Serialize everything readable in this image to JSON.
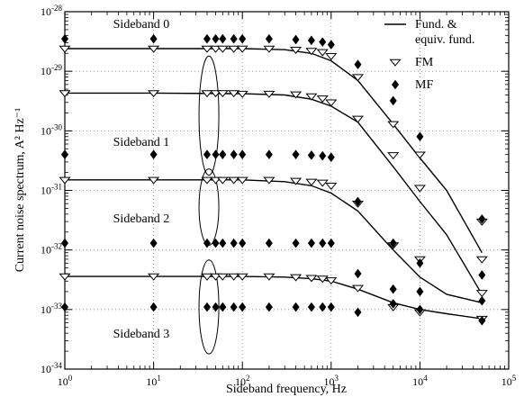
{
  "chart_data": {
    "type": "scatter",
    "xlabel": "Sideband frequency, Hz",
    "ylabel": "Current noise spectrum, A² Hz⁻¹",
    "x_scale": "log",
    "y_scale": "log",
    "xlim": [
      1,
      100000
    ],
    "ylim": [
      1e-34,
      1e-28
    ],
    "x_ticks": [
      {
        "value": 1,
        "base": "10",
        "exp": "0"
      },
      {
        "value": 10,
        "base": "10",
        "exp": "1"
      },
      {
        "value": 100,
        "base": "10",
        "exp": "2"
      },
      {
        "value": 1000,
        "base": "10",
        "exp": "3"
      },
      {
        "value": 10000,
        "base": "10",
        "exp": "4"
      },
      {
        "value": 100000,
        "base": "10",
        "exp": "5"
      }
    ],
    "y_ticks": [
      {
        "value": 1e-28,
        "base": "10",
        "exp": "-28"
      },
      {
        "value": 1e-29,
        "base": "10",
        "exp": "-29"
      },
      {
        "value": 1e-30,
        "base": "10",
        "exp": "-30"
      },
      {
        "value": 1e-31,
        "base": "10",
        "exp": "-31"
      },
      {
        "value": 1e-32,
        "base": "10",
        "exp": "-32"
      },
      {
        "value": 1e-33,
        "base": "10",
        "exp": "-33"
      },
      {
        "value": 1e-34,
        "base": "10",
        "exp": "-34"
      }
    ],
    "legend": {
      "placement": "top-right",
      "entries": [
        {
          "marker": "line",
          "label_lines": [
            "Fund. &",
            "equiv. fund."
          ]
        },
        {
          "marker": "triangle-down",
          "label_lines": [
            "FM"
          ]
        },
        {
          "marker": "diamond",
          "label_lines": [
            "MF"
          ]
        }
      ]
    },
    "annotations": [
      {
        "text": "Sideband 0",
        "x": 3.5,
        "y": 5.3e-29
      },
      {
        "text": "Sideband 1",
        "x": 3.5,
        "y": 5.6e-31
      },
      {
        "text": "Sideband 2",
        "x": 3.5,
        "y": 2.9e-32
      },
      {
        "text": "Sideband 3",
        "x": 3.5,
        "y": 3.4e-34
      }
    ],
    "ellipses": [
      {
        "x": 42,
        "y_top": 1.8e-29,
        "y_bottom": 1.8e-31
      },
      {
        "x": 42,
        "y_top": 2.3e-31,
        "y_bottom": 1.2e-32
      },
      {
        "x": 42,
        "y_top": 6.8e-33,
        "y_bottom": 1.8e-34
      }
    ],
    "series": [
      {
        "marker": "line",
        "curves": [
          {
            "x": [
              1,
              10,
              100,
              300,
              600,
              1000,
              2000,
              5000,
              10000,
              20000,
              50000
            ],
            "y": [
              2.4e-29,
              2.4e-29,
              2.4e-29,
              2.3e-29,
              2e-29,
              1.5e-29,
              7e-30,
              1.3e-30,
              3.5e-31,
              1e-31,
              9e-33
            ]
          },
          {
            "x": [
              1,
              10,
              100,
              300,
              600,
              1000,
              2000,
              5000,
              10000,
              20000,
              50000
            ],
            "y": [
              4.3e-30,
              4.3e-30,
              4.2e-30,
              4e-30,
              3.4e-30,
              2.6e-30,
              1.4e-30,
              2.5e-31,
              6.5e-32,
              1.8e-32,
              1.8e-33
            ]
          },
          {
            "x": [
              1,
              10,
              100,
              300,
              600,
              1000,
              2000,
              5000,
              10000,
              20000,
              50000
            ],
            "y": [
              1.5e-31,
              1.5e-31,
              1.5e-31,
              1.4e-31,
              1.2e-31,
              9e-32,
              4.5e-32,
              1e-32,
              3.5e-33,
              1.8e-33,
              1.3e-33
            ]
          },
          {
            "x": [
              1,
              10,
              100,
              300,
              600,
              1000,
              2000,
              5000,
              10000,
              20000,
              50000
            ],
            "y": [
              3.6e-33,
              3.6e-33,
              3.6e-33,
              3.5e-33,
              3.3e-33,
              3e-33,
              2.2e-33,
              1.3e-33,
              1e-33,
              8.5e-34,
              7e-34
            ]
          }
        ]
      },
      {
        "marker": "triangle-down",
        "points": [
          {
            "x": 1,
            "y": 2.4e-29
          },
          {
            "x": 10,
            "y": 2.4e-29
          },
          {
            "x": 40,
            "y": 2.4e-29
          },
          {
            "x": 50,
            "y": 2.4e-29
          },
          {
            "x": 60,
            "y": 2.4e-29
          },
          {
            "x": 80,
            "y": 2.4e-29
          },
          {
            "x": 100,
            "y": 2.4e-29
          },
          {
            "x": 200,
            "y": 2.4e-29
          },
          {
            "x": 400,
            "y": 2.3e-29
          },
          {
            "x": 600,
            "y": 2.2e-29
          },
          {
            "x": 800,
            "y": 2.1e-29
          },
          {
            "x": 1000,
            "y": 1.8e-29
          },
          {
            "x": 2000,
            "y": 8e-30
          },
          {
            "x": 5000,
            "y": 1.3e-30
          },
          {
            "x": 10000,
            "y": 4e-31
          },
          {
            "x": 50000,
            "y": 3e-32
          },
          {
            "x": 1,
            "y": 4.3e-30
          },
          {
            "x": 10,
            "y": 4.3e-30
          },
          {
            "x": 40,
            "y": 4.3e-30
          },
          {
            "x": 50,
            "y": 4.3e-30
          },
          {
            "x": 60,
            "y": 4.3e-30
          },
          {
            "x": 80,
            "y": 4.3e-30
          },
          {
            "x": 100,
            "y": 4.2e-30
          },
          {
            "x": 200,
            "y": 4.2e-30
          },
          {
            "x": 400,
            "y": 4.1e-30
          },
          {
            "x": 600,
            "y": 3.8e-30
          },
          {
            "x": 800,
            "y": 3.5e-30
          },
          {
            "x": 1000,
            "y": 3e-30
          },
          {
            "x": 2000,
            "y": 1.6e-30
          },
          {
            "x": 5000,
            "y": 3.9e-31
          },
          {
            "x": 10000,
            "y": 1.1e-31
          },
          {
            "x": 50000,
            "y": 7e-33
          },
          {
            "x": 1,
            "y": 1.5e-31
          },
          {
            "x": 10,
            "y": 1.5e-31
          },
          {
            "x": 40,
            "y": 1.5e-31
          },
          {
            "x": 50,
            "y": 1.5e-31
          },
          {
            "x": 60,
            "y": 1.5e-31
          },
          {
            "x": 80,
            "y": 1.5e-31
          },
          {
            "x": 100,
            "y": 1.5e-31
          },
          {
            "x": 200,
            "y": 1.5e-31
          },
          {
            "x": 400,
            "y": 1.45e-31
          },
          {
            "x": 600,
            "y": 1.4e-31
          },
          {
            "x": 800,
            "y": 1.35e-31
          },
          {
            "x": 1000,
            "y": 1.2e-31
          },
          {
            "x": 2000,
            "y": 6e-32
          },
          {
            "x": 5000,
            "y": 1.2e-32
          },
          {
            "x": 10000,
            "y": 7e-33
          },
          {
            "x": 50000,
            "y": 1.9e-33
          },
          {
            "x": 1,
            "y": 3.6e-33
          },
          {
            "x": 10,
            "y": 3.6e-33
          },
          {
            "x": 40,
            "y": 3.6e-33
          },
          {
            "x": 50,
            "y": 3.6e-33
          },
          {
            "x": 60,
            "y": 3.6e-33
          },
          {
            "x": 80,
            "y": 3.6e-33
          },
          {
            "x": 100,
            "y": 3.6e-33
          },
          {
            "x": 200,
            "y": 3.6e-33
          },
          {
            "x": 400,
            "y": 3.5e-33
          },
          {
            "x": 600,
            "y": 3.4e-33
          },
          {
            "x": 800,
            "y": 3.3e-33
          },
          {
            "x": 1000,
            "y": 3.1e-33
          },
          {
            "x": 2000,
            "y": 2.3e-33
          },
          {
            "x": 5000,
            "y": 1.1e-33
          },
          {
            "x": 10000,
            "y": 9e-34
          },
          {
            "x": 50000,
            "y": 7e-34
          }
        ]
      },
      {
        "marker": "diamond",
        "points": [
          {
            "x": 1,
            "y": 3.5e-29
          },
          {
            "x": 10,
            "y": 3.5e-29
          },
          {
            "x": 40,
            "y": 3.5e-29
          },
          {
            "x": 50,
            "y": 3.5e-29
          },
          {
            "x": 60,
            "y": 3.5e-29
          },
          {
            "x": 80,
            "y": 3.5e-29
          },
          {
            "x": 100,
            "y": 3.5e-29
          },
          {
            "x": 200,
            "y": 3.5e-29
          },
          {
            "x": 400,
            "y": 3.4e-29
          },
          {
            "x": 600,
            "y": 3.3e-29
          },
          {
            "x": 800,
            "y": 3.1e-29
          },
          {
            "x": 1000,
            "y": 2.8e-29
          },
          {
            "x": 2000,
            "y": 1.3e-29
          },
          {
            "x": 5000,
            "y": 3.2e-30
          },
          {
            "x": 10000,
            "y": 8e-31
          },
          {
            "x": 50000,
            "y": 3.3e-32
          },
          {
            "x": 1,
            "y": 4e-31
          },
          {
            "x": 10,
            "y": 4e-31
          },
          {
            "x": 40,
            "y": 4e-31
          },
          {
            "x": 50,
            "y": 4e-31
          },
          {
            "x": 60,
            "y": 4e-31
          },
          {
            "x": 80,
            "y": 4e-31
          },
          {
            "x": 100,
            "y": 4e-31
          },
          {
            "x": 200,
            "y": 4e-31
          },
          {
            "x": 400,
            "y": 4e-31
          },
          {
            "x": 600,
            "y": 3.9e-31
          },
          {
            "x": 800,
            "y": 3.8e-31
          },
          {
            "x": 1000,
            "y": 3.6e-31
          },
          {
            "x": 2000,
            "y": 6.5e-32
          },
          {
            "x": 5000,
            "y": 1.3e-32
          },
          {
            "x": 10000,
            "y": 6e-33
          },
          {
            "x": 50000,
            "y": 3.8e-33
          },
          {
            "x": 1,
            "y": 1.3e-32
          },
          {
            "x": 10,
            "y": 1.3e-32
          },
          {
            "x": 40,
            "y": 1.3e-32
          },
          {
            "x": 50,
            "y": 1.3e-32
          },
          {
            "x": 60,
            "y": 1.3e-32
          },
          {
            "x": 80,
            "y": 1.3e-32
          },
          {
            "x": 100,
            "y": 1.3e-32
          },
          {
            "x": 200,
            "y": 1.3e-32
          },
          {
            "x": 400,
            "y": 1.3e-32
          },
          {
            "x": 600,
            "y": 1.3e-32
          },
          {
            "x": 800,
            "y": 1.3e-32
          },
          {
            "x": 1000,
            "y": 1.3e-32
          },
          {
            "x": 2000,
            "y": 4e-33
          },
          {
            "x": 5000,
            "y": 2.2e-33
          },
          {
            "x": 10000,
            "y": 2e-33
          },
          {
            "x": 50000,
            "y": 1.4e-33
          },
          {
            "x": 1,
            "y": 1.1e-33
          },
          {
            "x": 10,
            "y": 1.1e-33
          },
          {
            "x": 40,
            "y": 1.1e-33
          },
          {
            "x": 50,
            "y": 1.1e-33
          },
          {
            "x": 60,
            "y": 1.1e-33
          },
          {
            "x": 80,
            "y": 1.1e-33
          },
          {
            "x": 100,
            "y": 1.1e-33
          },
          {
            "x": 200,
            "y": 1.1e-33
          },
          {
            "x": 400,
            "y": 1.1e-33
          },
          {
            "x": 600,
            "y": 1.1e-33
          },
          {
            "x": 800,
            "y": 1.1e-33
          },
          {
            "x": 1000,
            "y": 1.1e-33
          },
          {
            "x": 2000,
            "y": 9e-34
          },
          {
            "x": 5000,
            "y": 1.25e-33
          },
          {
            "x": 10000,
            "y": 1e-33
          },
          {
            "x": 50000,
            "y": 6.5e-34
          }
        ]
      }
    ]
  }
}
